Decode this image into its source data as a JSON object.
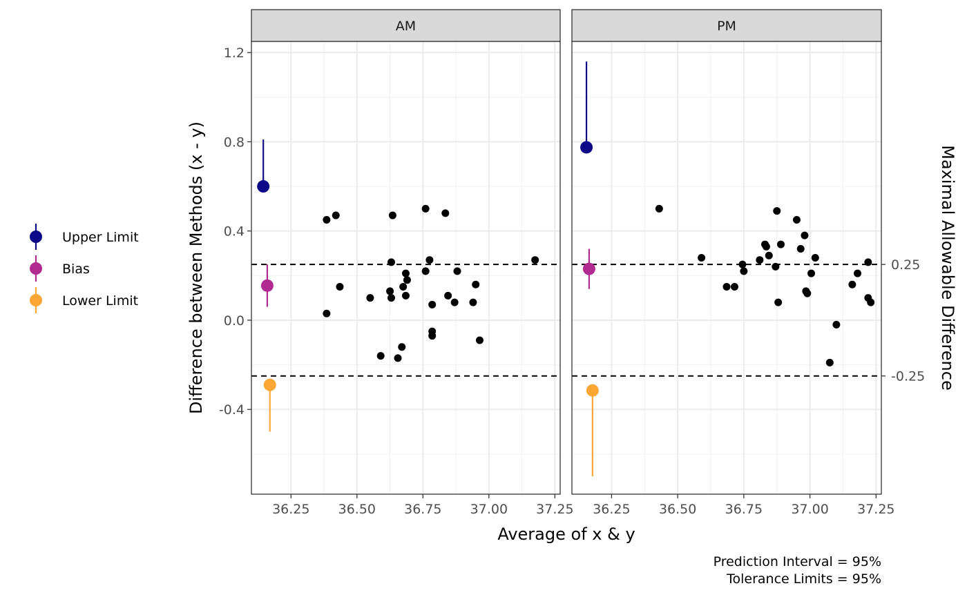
{
  "chart_data": {
    "type": "scatter",
    "xlabel": "Average of x & y",
    "ylabel": "Difference between Methods (x - y)",
    "secondary_ylabel": "Maximal Allowable Difference",
    "xlim": [
      36.1,
      37.27
    ],
    "ylim": [
      -0.78,
      1.25
    ],
    "x_ticks": [
      36.25,
      36.5,
      36.75,
      37.0,
      37.25
    ],
    "x_tick_labels": [
      "36.25",
      "36.50",
      "36.75",
      "37.00",
      "37.25"
    ],
    "y_ticks": [
      -0.4,
      0.0,
      0.4,
      0.8,
      1.2
    ],
    "y_tick_labels": [
      "-0.4",
      "0.0",
      "0.4",
      "0.8",
      "1.2"
    ],
    "secondary_y_ticks": [
      0.25,
      -0.25
    ],
    "secondary_y_tick_labels": [
      "0.25",
      "-0.25"
    ],
    "reference_lines": [
      0.25,
      -0.25
    ],
    "grid": true,
    "legend_position": "left",
    "legend": [
      {
        "label": "Upper Limit",
        "color": "#0D0887"
      },
      {
        "label": "Bias",
        "color": "#B12A90"
      },
      {
        "label": "Lower Limit",
        "color": "#FCA636"
      }
    ],
    "caption_lines": [
      "Prediction Interval = 95%",
      "Tolerance Limits = 95%"
    ],
    "panels": [
      {
        "label": "AM",
        "points": [
          [
            36.385,
            0.45
          ],
          [
            36.42,
            0.47
          ],
          [
            36.385,
            0.03
          ],
          [
            36.435,
            0.15
          ],
          [
            36.55,
            0.1
          ],
          [
            36.59,
            -0.16
          ],
          [
            36.625,
            0.13
          ],
          [
            36.63,
            0.1
          ],
          [
            36.63,
            0.26
          ],
          [
            36.635,
            0.47
          ],
          [
            36.655,
            -0.17
          ],
          [
            36.67,
            -0.12
          ],
          [
            36.675,
            0.15
          ],
          [
            36.685,
            0.11
          ],
          [
            36.685,
            0.21
          ],
          [
            36.69,
            0.18
          ],
          [
            36.76,
            0.5
          ],
          [
            36.76,
            0.22
          ],
          [
            36.775,
            0.27
          ],
          [
            36.785,
            0.07
          ],
          [
            36.785,
            -0.05
          ],
          [
            36.785,
            -0.07
          ],
          [
            36.835,
            0.48
          ],
          [
            36.845,
            0.11
          ],
          [
            36.87,
            0.08
          ],
          [
            36.88,
            0.22
          ],
          [
            36.94,
            0.08
          ],
          [
            36.95,
            0.16
          ],
          [
            36.965,
            -0.09
          ],
          [
            37.175,
            0.27
          ]
        ],
        "intervals": [
          {
            "name": "Upper Limit",
            "x": 36.145,
            "y": 0.6,
            "low": 0.6,
            "high": 0.81
          },
          {
            "name": "Bias",
            "x": 36.16,
            "y": 0.155,
            "low": 0.06,
            "high": 0.25
          },
          {
            "name": "Lower Limit",
            "x": 36.17,
            "y": -0.29,
            "low": -0.5,
            "high": -0.29
          }
        ]
      },
      {
        "label": "PM",
        "points": [
          [
            36.43,
            0.5
          ],
          [
            36.59,
            0.28
          ],
          [
            36.685,
            0.15
          ],
          [
            36.715,
            0.15
          ],
          [
            36.745,
            0.25
          ],
          [
            36.75,
            0.22
          ],
          [
            36.81,
            0.27
          ],
          [
            36.83,
            0.34
          ],
          [
            36.835,
            0.33
          ],
          [
            36.845,
            0.29
          ],
          [
            36.87,
            0.24
          ],
          [
            36.875,
            0.49
          ],
          [
            36.88,
            0.08
          ],
          [
            36.89,
            0.34
          ],
          [
            36.95,
            0.45
          ],
          [
            36.965,
            0.32
          ],
          [
            36.98,
            0.38
          ],
          [
            36.985,
            0.13
          ],
          [
            36.99,
            0.12
          ],
          [
            37.005,
            0.21
          ],
          [
            37.02,
            0.28
          ],
          [
            37.075,
            -0.19
          ],
          [
            37.1,
            -0.02
          ],
          [
            37.16,
            0.16
          ],
          [
            37.18,
            0.21
          ],
          [
            37.22,
            0.26
          ],
          [
            37.22,
            0.1
          ],
          [
            37.23,
            0.08
          ]
        ],
        "intervals": [
          {
            "name": "Upper Limit",
            "x": 36.155,
            "y": 0.775,
            "low": 0.775,
            "high": 1.16
          },
          {
            "name": "Bias",
            "x": 36.165,
            "y": 0.23,
            "low": 0.14,
            "high": 0.32
          },
          {
            "name": "Lower Limit",
            "x": 36.178,
            "y": -0.315,
            "low": -0.7,
            "high": -0.315
          }
        ]
      }
    ]
  }
}
